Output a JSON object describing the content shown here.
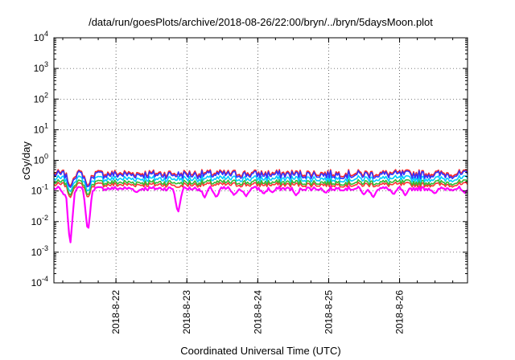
{
  "chart_data": {
    "type": "line",
    "title": "/data/run/goesPlots/archive/2018-08-26/22:00/bryn/../bryn/5daysMoon.plot",
    "xlabel": "Coordinated Universal Time (UTC)",
    "ylabel": "cGy/day",
    "y_scale": "log",
    "ylim": [
      0.0001,
      10000
    ],
    "y_ticks": [
      {
        "value": 0.0001,
        "base": "10",
        "exp": "-4"
      },
      {
        "value": 0.001,
        "base": "10",
        "exp": "-3"
      },
      {
        "value": 0.01,
        "base": "10",
        "exp": "-2"
      },
      {
        "value": 0.1,
        "base": "10",
        "exp": "-1"
      },
      {
        "value": 1,
        "base": "10",
        "exp": "0"
      },
      {
        "value": 10,
        "base": "10",
        "exp": "1"
      },
      {
        "value": 100,
        "base": "10",
        "exp": "2"
      },
      {
        "value": 1000,
        "base": "10",
        "exp": "3"
      },
      {
        "value": 10000,
        "base": "10",
        "exp": "4"
      }
    ],
    "xlim": [
      "2018-08-21T03:00",
      "2018-08-26T23:00"
    ],
    "x_ticks": [
      {
        "value": "2018-08-22T00:00",
        "label": "2018-8-22"
      },
      {
        "value": "2018-08-23T00:00",
        "label": "2018-8-23"
      },
      {
        "value": "2018-08-24T00:00",
        "label": "2018-8-24"
      },
      {
        "value": "2018-08-25T00:00",
        "label": "2018-8-25"
      },
      {
        "value": "2018-08-26T00:00",
        "label": "2018-8-26"
      }
    ],
    "grid": true,
    "legend": "none",
    "series": [
      {
        "color": "#ff00ff",
        "level": 0.12
      },
      {
        "color": "#ff3333",
        "level": 0.16
      },
      {
        "color": "#33bb33",
        "level": 0.19
      },
      {
        "color": "#00ccff",
        "level": 0.25
      },
      {
        "color": "#ff2222",
        "level": 0.38
      },
      {
        "color": "#3333ff",
        "level": 0.34
      }
    ],
    "dips": [
      {
        "x": "2018-08-21T08:30",
        "value": 0.0015
      },
      {
        "x": "2018-08-21T14:30",
        "value": 0.004
      },
      {
        "x": "2018-08-22T21:00",
        "value": 0.018
      },
      {
        "x": "2018-08-21T06:30",
        "value": 0.07
      },
      {
        "x": "2018-08-21T15:00",
        "value": 0.08
      },
      {
        "x": "2018-08-22T07:00",
        "value": 0.09
      },
      {
        "x": "2018-08-23T06:00",
        "value": 0.06
      },
      {
        "x": "2018-08-23T10:00",
        "value": 0.06
      },
      {
        "x": "2018-08-23T16:00",
        "value": 0.07
      },
      {
        "x": "2018-08-23T20:00",
        "value": 0.065
      },
      {
        "x": "2018-08-24T02:00",
        "value": 0.08
      },
      {
        "x": "2018-08-24T05:00",
        "value": 0.09
      },
      {
        "x": "2018-08-24T13:00",
        "value": 0.07
      },
      {
        "x": "2018-08-24T23:00",
        "value": 0.085
      },
      {
        "x": "2018-08-25T12:00",
        "value": 0.075
      },
      {
        "x": "2018-08-25T15:00",
        "value": 0.06
      },
      {
        "x": "2018-08-25T22:00",
        "value": 0.075
      },
      {
        "x": "2018-08-26T02:00",
        "value": 0.07
      },
      {
        "x": "2018-08-26T12:00",
        "value": 0.08
      },
      {
        "x": "2018-08-26T22:00",
        "value": 0.085
      }
    ]
  }
}
